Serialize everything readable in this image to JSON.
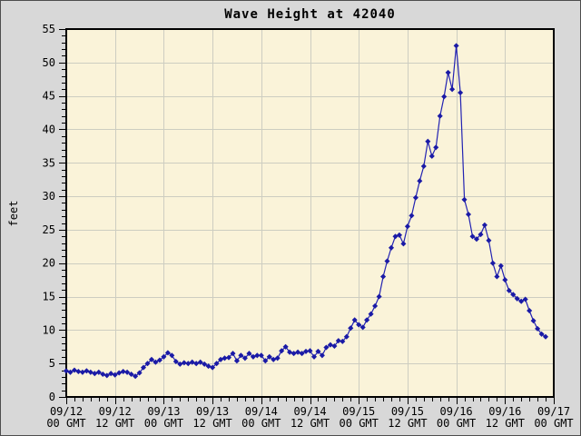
{
  "title": "Wave Height at 42040",
  "colors": {
    "background": "#d8d8d8",
    "plot_background": "#faf3d9",
    "grid": "#cdcdc1",
    "frame": "#000000",
    "line": "#2222b2",
    "marker": "#1a1aa6",
    "text": "#000000"
  },
  "chart_data": {
    "type": "line",
    "title": "Wave Height at 42040",
    "xlabel": "",
    "ylabel": "feet",
    "ylim": [
      0,
      55
    ],
    "y_major_step": 5,
    "y_minor_step": 1,
    "xlim_hours": [
      0,
      120
    ],
    "x_major_step_hours": 12,
    "x_minor_step_hours": 2,
    "grid": true,
    "legend": "none",
    "x_major_labels": [
      [
        "09/12",
        "00 GMT"
      ],
      [
        "09/12",
        "12 GMT"
      ],
      [
        "09/13",
        "00 GMT"
      ],
      [
        "09/13",
        "12 GMT"
      ],
      [
        "09/14",
        "00 GMT"
      ],
      [
        "09/14",
        "12 GMT"
      ],
      [
        "09/15",
        "00 GMT"
      ],
      [
        "09/15",
        "12 GMT"
      ],
      [
        "09/16",
        "00 GMT"
      ],
      [
        "09/16",
        "12 GMT"
      ],
      [
        "09/17",
        "00 GMT"
      ]
    ],
    "series": [
      {
        "name": "wave-height-feet",
        "x_start_hour": 0,
        "x_step_hours": 1,
        "values": [
          3.9,
          3.7,
          4.0,
          3.8,
          3.7,
          3.9,
          3.7,
          3.5,
          3.7,
          3.4,
          3.2,
          3.5,
          3.3,
          3.6,
          3.8,
          3.7,
          3.4,
          3.1,
          3.6,
          4.4,
          5.0,
          5.6,
          5.2,
          5.5,
          6.0,
          6.6,
          6.2,
          5.3,
          4.9,
          5.1,
          5.0,
          5.2,
          5.0,
          5.2,
          4.9,
          4.6,
          4.4,
          5.0,
          5.6,
          5.8,
          5.9,
          6.5,
          5.4,
          6.2,
          5.8,
          6.5,
          6.0,
          6.2,
          6.2,
          5.4,
          6.0,
          5.6,
          5.8,
          6.9,
          7.5,
          6.7,
          6.5,
          6.7,
          6.5,
          6.8,
          6.9,
          6.0,
          6.8,
          6.2,
          7.4,
          7.8,
          7.6,
          8.4,
          8.3,
          9.0,
          10.3,
          11.5,
          10.8,
          10.4,
          11.5,
          12.4,
          13.6,
          15.0,
          18.0,
          20.3,
          22.3,
          24.0,
          24.2,
          22.9,
          25.5,
          27.1,
          29.8,
          32.3,
          34.5,
          38.2,
          36.0,
          37.3,
          42.0,
          44.9,
          48.5,
          46.0,
          52.5,
          45.5,
          29.5,
          27.3,
          24.0,
          23.6,
          24.3,
          25.7,
          23.4,
          20.0,
          18.0,
          19.6,
          17.5,
          15.9,
          15.3,
          14.7,
          14.3,
          14.6,
          12.9,
          11.4,
          10.2,
          9.4,
          9.0
        ]
      }
    ]
  }
}
